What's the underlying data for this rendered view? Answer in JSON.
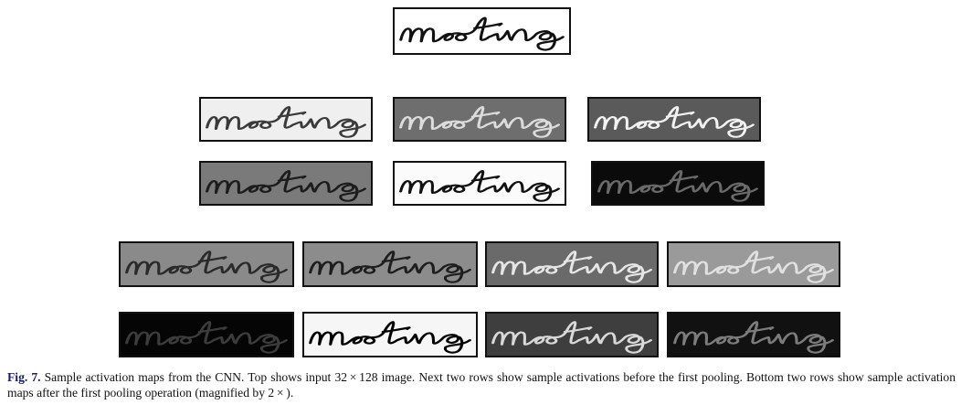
{
  "figure": {
    "word": "meeting",
    "caption_label": "Fig. 7.",
    "caption_text": "Sample activation maps from the CNN. Top shows input 32 × 128 image. Next two rows show sample activations before the first pooling. Bottom two rows show sample activation maps after the first pooling operation (magnified by 2 × )."
  },
  "tiles": {
    "input": {
      "bg": "#ffffff",
      "ink": "#111111"
    },
    "pre_pool": [
      {
        "bg": "#efefef",
        "ink": "#3a3a3a"
      },
      {
        "bg": "#6e6e6e",
        "ink": "#dcdcdc"
      },
      {
        "bg": "#5a5a5a",
        "ink": "#f2f2f2"
      },
      {
        "bg": "#7a7a7a",
        "ink": "#1c1c1c"
      },
      {
        "bg": "#fbfbfb",
        "ink": "#111111"
      },
      {
        "bg": "#0b0b0b",
        "ink": "#6a6a6a"
      }
    ],
    "post_pool": [
      {
        "bg": "#8a8a8a",
        "ink": "#2a2a2a"
      },
      {
        "bg": "#8c8c8c",
        "ink": "#1e1e1e"
      },
      {
        "bg": "#6a6a6a",
        "ink": "#e6e6e6"
      },
      {
        "bg": "#9a9a9a",
        "ink": "#e0e0e0"
      },
      {
        "bg": "#050505",
        "ink": "#3c3c3c"
      },
      {
        "bg": "#f6f6f6",
        "ink": "#000000"
      },
      {
        "bg": "#3e3e3e",
        "ink": "#d8d8d8"
      },
      {
        "bg": "#111111",
        "ink": "#7c7c7c"
      }
    ]
  }
}
